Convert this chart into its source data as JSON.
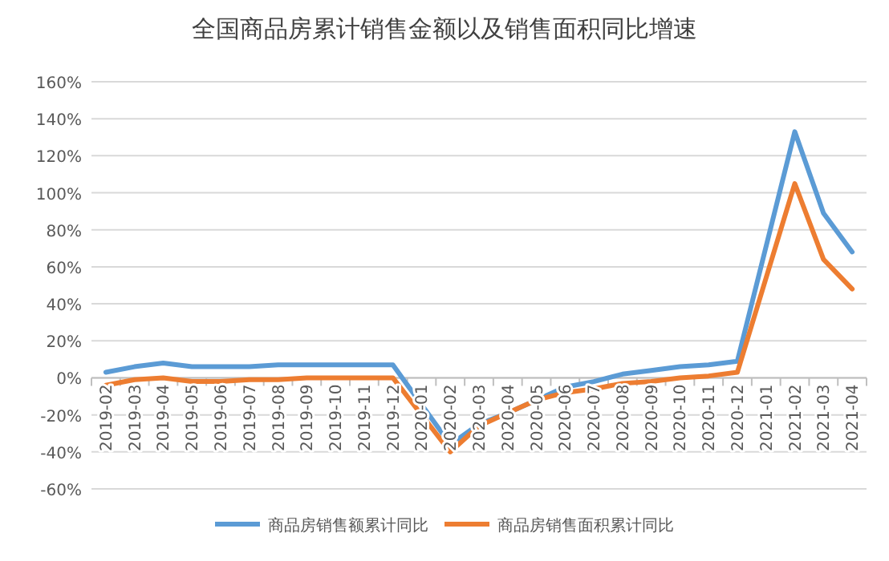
{
  "chart_data": {
    "type": "line",
    "title": "全国商品房累计销售金额以及销售面积同比增速",
    "categories": [
      "2019-02",
      "2019-03",
      "2019-04",
      "2019-05",
      "2019-06",
      "2019-07",
      "2019-08",
      "2019-09",
      "2019-10",
      "2019-11",
      "2019-12",
      "2020-01",
      "2020-02",
      "2020-03",
      "2020-04",
      "2020-05",
      "2020-06",
      "2020-07",
      "2020-08",
      "2020-09",
      "2020-10",
      "2020-11",
      "2020-12",
      "2021-01",
      "2021-02",
      "2021-03",
      "2021-04"
    ],
    "series": [
      {
        "name": "商品房销售额累计同比",
        "color": "#5b9bd5",
        "values": [
          3,
          6,
          8,
          6,
          6,
          6,
          7,
          7,
          7,
          7,
          7,
          null,
          -36,
          -25,
          -19,
          -12,
          -5,
          -2,
          2,
          4,
          6,
          7,
          9,
          null,
          133,
          89,
          68
        ]
      },
      {
        "name": "商品房销售面积累计同比",
        "color": "#ed7d31",
        "values": [
          -4,
          -1,
          0,
          -2,
          -2,
          -1,
          -1,
          0,
          0,
          0,
          0,
          null,
          -40,
          -26,
          -19,
          -12,
          -8,
          -6,
          -3,
          -2,
          0,
          1,
          3,
          null,
          105,
          64,
          48
        ]
      }
    ],
    "ylim": [
      -60,
      160
    ],
    "yticks": [
      {
        "value": -60,
        "label": "-60%"
      },
      {
        "value": -40,
        "label": "-40%"
      },
      {
        "value": -20,
        "label": "-20%"
      },
      {
        "value": 0,
        "label": "0%"
      },
      {
        "value": 20,
        "label": "20%"
      },
      {
        "value": 40,
        "label": "40%"
      },
      {
        "value": 60,
        "label": "60%"
      },
      {
        "value": 80,
        "label": "80%"
      },
      {
        "value": 100,
        "label": "100%"
      },
      {
        "value": 120,
        "label": "120%"
      },
      {
        "value": 140,
        "label": "140%"
      },
      {
        "value": 160,
        "label": "160%"
      }
    ],
    "grid": "y",
    "legend": "bottom",
    "marker": "none",
    "line_style": "solid"
  }
}
